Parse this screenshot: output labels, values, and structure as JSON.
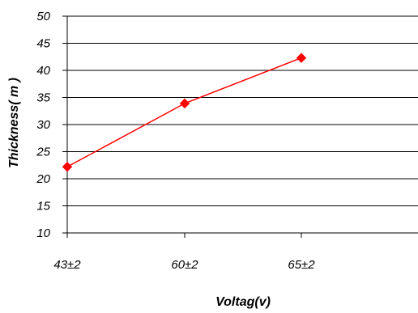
{
  "chart_data": {
    "type": "line",
    "categories": [
      "43±2",
      "60±2",
      "65±2"
    ],
    "series": [
      {
        "values": [
          22.2,
          33.9,
          42.3
        ],
        "color": "#ff0000",
        "marker": "diamond"
      }
    ],
    "xlabel": "Voltag(v)",
    "ylabel": "Thickness( m )",
    "ylim": [
      10,
      50
    ],
    "yticks": [
      10,
      15,
      20,
      25,
      30,
      35,
      40,
      45,
      50
    ],
    "grid": true
  }
}
